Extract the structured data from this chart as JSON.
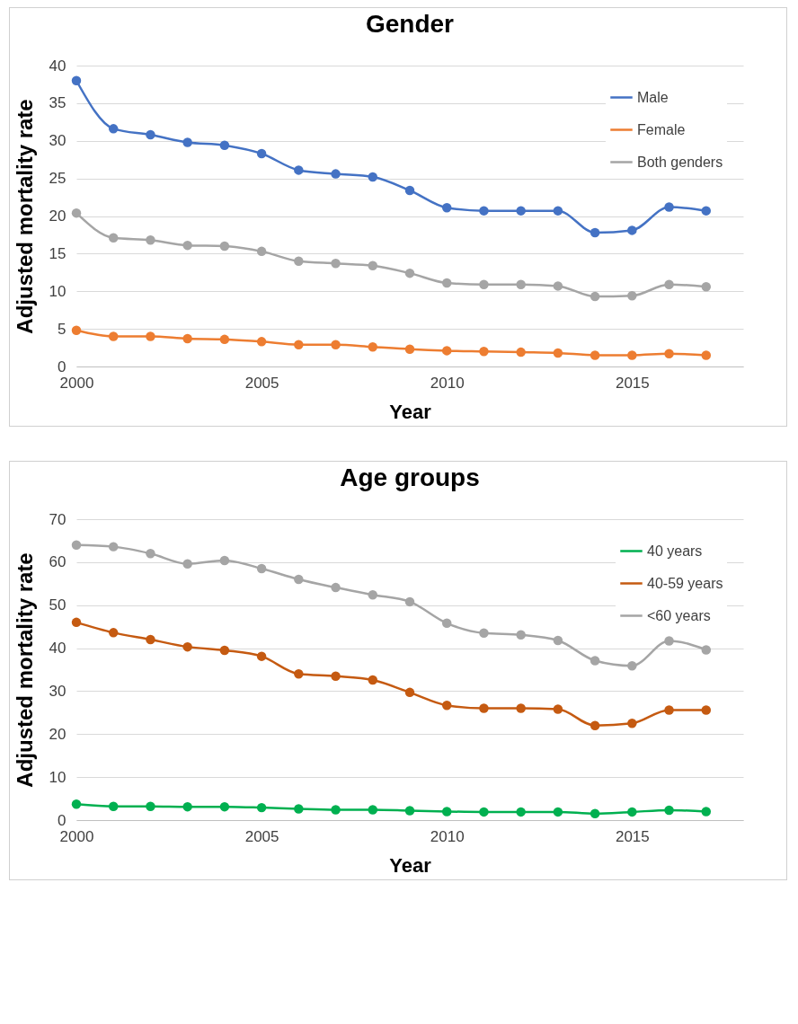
{
  "chart_data": [
    {
      "type": "line",
      "title": "Gender",
      "xlabel": "Year",
      "ylabel": "Adjusted mortality rate",
      "x": [
        2000,
        2001,
        2002,
        2003,
        2004,
        2005,
        2006,
        2007,
        2008,
        2009,
        2010,
        2011,
        2012,
        2013,
        2014,
        2015,
        2016,
        2017
      ],
      "xlim": [
        2000,
        2018
      ],
      "xticks": [
        2000,
        2005,
        2010,
        2015
      ],
      "ylim": [
        0,
        40
      ],
      "yticks": [
        0,
        5,
        10,
        15,
        20,
        25,
        30,
        35,
        40
      ],
      "grid": "y",
      "legend": "top right",
      "marker": "circle",
      "series": [
        {
          "name": "Male",
          "color": "#4472c4",
          "values": [
            38,
            31.6,
            30.8,
            29.8,
            29.4,
            28.3,
            26.1,
            25.6,
            25.2,
            23.4,
            21.1,
            20.7,
            20.7,
            20.7,
            17.8,
            18.1,
            21.2,
            20.7
          ]
        },
        {
          "name": "Female",
          "color": "#ed7d31",
          "values": [
            4.8,
            4.0,
            4.0,
            3.7,
            3.6,
            3.3,
            2.9,
            2.9,
            2.6,
            2.3,
            2.1,
            2.0,
            1.9,
            1.8,
            1.5,
            1.5,
            1.7,
            1.5
          ]
        },
        {
          "name": "Both genders",
          "color": "#a5a5a5",
          "values": [
            20.4,
            17.1,
            16.8,
            16.1,
            16.0,
            15.3,
            14.0,
            13.7,
            13.4,
            12.4,
            11.1,
            10.9,
            10.9,
            10.7,
            9.3,
            9.4,
            10.9,
            10.6
          ]
        }
      ]
    },
    {
      "type": "line",
      "title": "Age groups",
      "xlabel": "Year",
      "ylabel": "Adjusted mortality rate",
      "x": [
        2000,
        2001,
        2002,
        2003,
        2004,
        2005,
        2006,
        2007,
        2008,
        2009,
        2010,
        2011,
        2012,
        2013,
        2014,
        2015,
        2016,
        2017
      ],
      "xlim": [
        2000,
        2018
      ],
      "xticks": [
        2000,
        2005,
        2010,
        2015
      ],
      "ylim": [
        0,
        70
      ],
      "yticks": [
        0,
        10,
        20,
        30,
        40,
        50,
        60,
        70
      ],
      "grid": "y",
      "legend": "top right",
      "marker": "circle",
      "series": [
        {
          "name": "40 years",
          "color": "#00b050",
          "values": [
            3.7,
            3.2,
            3.2,
            3.1,
            3.1,
            2.9,
            2.6,
            2.4,
            2.4,
            2.2,
            2.0,
            1.9,
            1.9,
            1.9,
            1.5,
            1.9,
            2.3,
            2.0
          ]
        },
        {
          "name": "40-59 years",
          "color": "#c55a11",
          "values": [
            46,
            43.6,
            42,
            40.3,
            39.5,
            38.1,
            34,
            33.5,
            32.6,
            29.7,
            26.7,
            26,
            26,
            25.8,
            22,
            22.5,
            25.6,
            25.6
          ]
        },
        {
          "name": "<60 years",
          "color": "#a5a5a5",
          "values": [
            64,
            63.6,
            62,
            59.6,
            60.4,
            58.5,
            56,
            54.1,
            52.4,
            50.8,
            45.8,
            43.5,
            43.1,
            41.8,
            37.1,
            35.9,
            41.7,
            39.6
          ]
        }
      ]
    }
  ]
}
